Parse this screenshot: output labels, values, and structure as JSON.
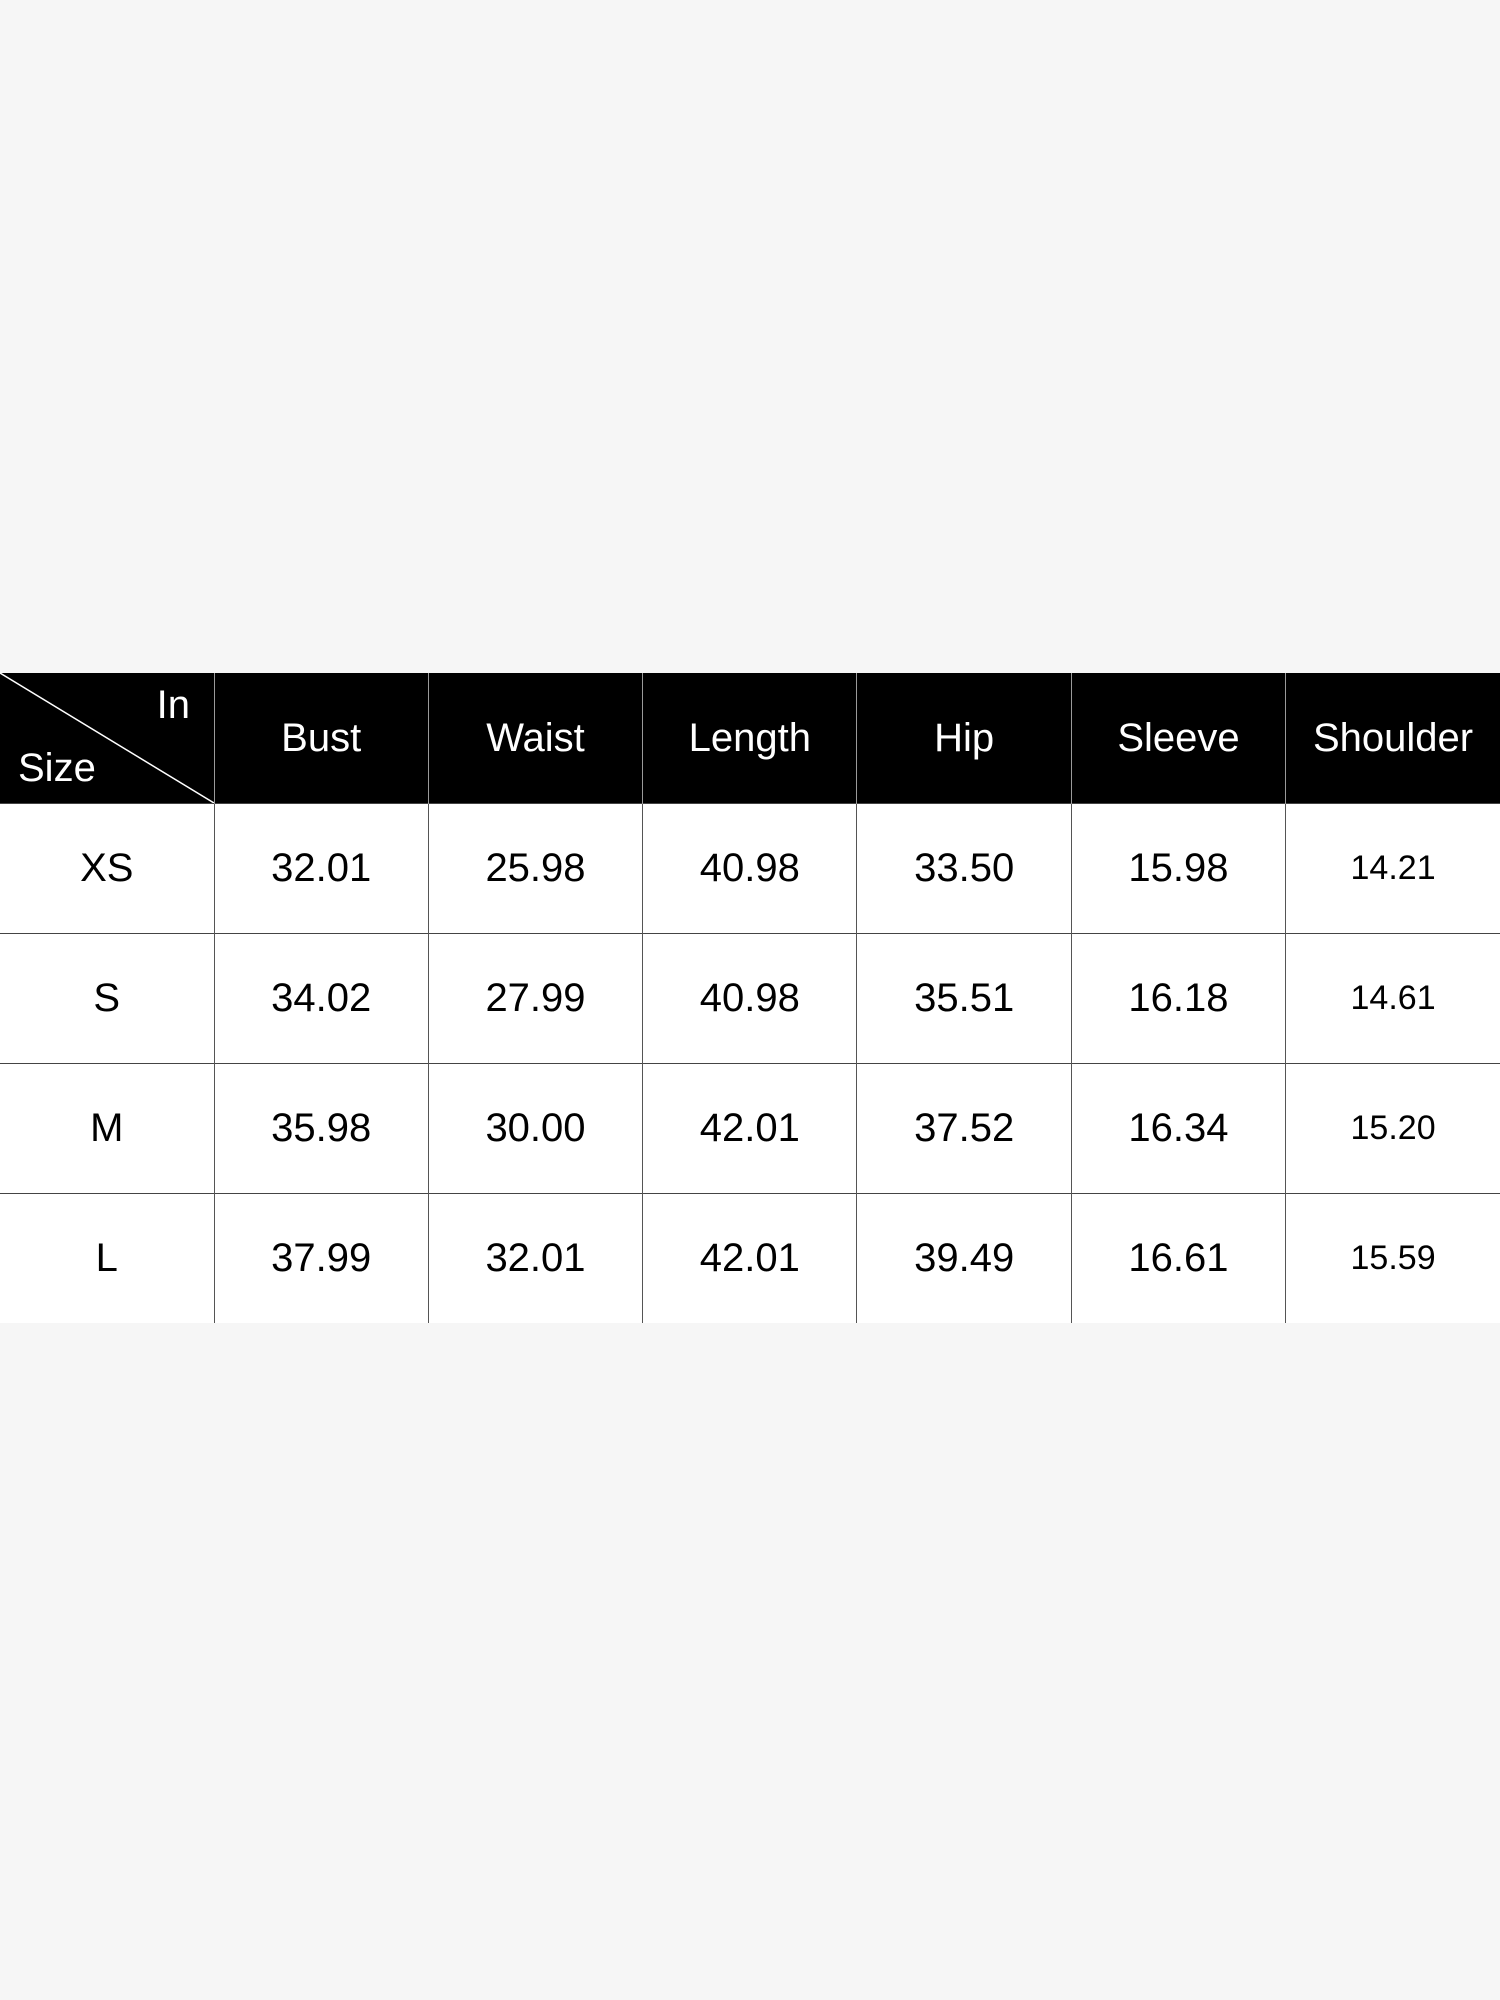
{
  "table": {
    "corner": {
      "top_right": "In",
      "bottom_left": "Size"
    },
    "headers": [
      "Bust",
      "Waist",
      "Length",
      "Hip",
      "Sleeve",
      "Shoulder"
    ],
    "rows": [
      {
        "size": "XS",
        "values": [
          "32.01",
          "25.98",
          "40.98",
          "33.50",
          "15.98",
          "14.21"
        ]
      },
      {
        "size": "S",
        "values": [
          "34.02",
          "27.99",
          "40.98",
          "35.51",
          "16.18",
          "14.61"
        ]
      },
      {
        "size": "M",
        "values": [
          "35.98",
          "30.00",
          "42.01",
          "37.52",
          "16.34",
          "15.20"
        ]
      },
      {
        "size": "L",
        "values": [
          "37.99",
          "32.01",
          "42.01",
          "39.49",
          "16.61",
          "15.59"
        ]
      }
    ]
  },
  "colors": {
    "header_bg": "#000000",
    "page_bg": "#f6f6f6"
  }
}
